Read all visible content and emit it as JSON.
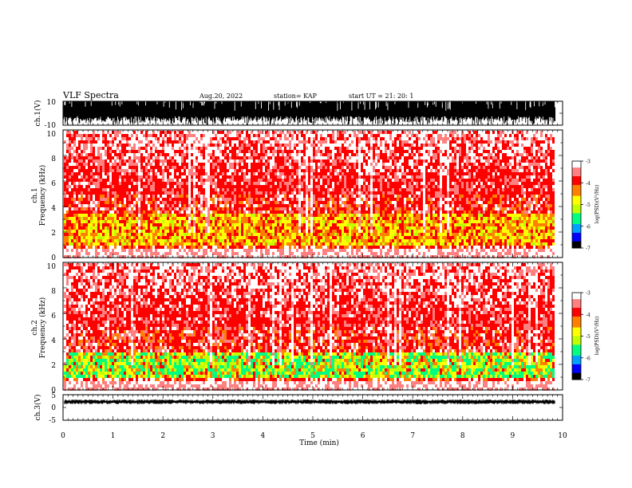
{
  "header": {
    "title": "VLF Spectra",
    "date": "Aug.20, 2022",
    "station": "station= KAP",
    "start_ut": "start  UT =   21: 20: 1"
  },
  "colors": {
    "axis": "#000000",
    "waveform": "#000000",
    "colormap": [
      "#000000",
      "#0000ff",
      "#00a0ff",
      "#00ff80",
      "#c0ff00",
      "#ffff00",
      "#ff8000",
      "#ff0000",
      "#ff8080",
      "#ffffff"
    ]
  },
  "chart_data": [
    {
      "type": "line",
      "panel": "ch1-waveform",
      "ylabel": "ch.1(V)",
      "ylim": [
        -10,
        10
      ],
      "ytick_labels": [
        "10",
        "-10"
      ],
      "xlim": [
        0,
        10
      ],
      "note_visual": "dense saturated waveform, amplitude mostly clipped at +-10 V"
    },
    {
      "type": "heatmap",
      "panel": "ch1-spectrogram",
      "ylabel": "ch.1\nFrequency (kHz)",
      "ylim": [
        0,
        10
      ],
      "ytick_labels": [
        "0",
        "2",
        "4",
        "6",
        "8",
        "10"
      ],
      "xlim": [
        0,
        10
      ],
      "data_x_max": 9.85,
      "colorbar": {
        "label": "log(PSD)(V²/Hz)",
        "range": [
          -7,
          -3
        ],
        "tick_labels": [
          "-3",
          "-4",
          "-5",
          "-6",
          "-7"
        ]
      },
      "dominant_band_khz": [
        0.8,
        3.5
      ]
    },
    {
      "type": "heatmap",
      "panel": "ch2-spectrogram",
      "ylabel": "ch.2\nFrequency (kHz)",
      "ylim": [
        0,
        10
      ],
      "ytick_labels": [
        "0",
        "2",
        "4",
        "6",
        "8",
        "10"
      ],
      "xlim": [
        0,
        10
      ],
      "data_x_max": 9.85,
      "colorbar": {
        "label": "log(PSD)(V²/Hz)",
        "range": [
          -7,
          -3
        ],
        "tick_labels": [
          "-3",
          "-4",
          "-5",
          "-6",
          "-7"
        ]
      },
      "dominant_band_khz": [
        0.8,
        3.0
      ]
    },
    {
      "type": "line",
      "panel": "ch3-waveform",
      "ylabel": "ch.3(V)",
      "ylim": [
        -5,
        5
      ],
      "ytick_labels": [
        "5",
        "0",
        "-5"
      ],
      "xlim": [
        0,
        10
      ],
      "xlabel": "Time (min)",
      "xtick_labels": [
        "0",
        "1",
        "2",
        "3",
        "4",
        "5",
        "6",
        "7",
        "8",
        "9",
        "10"
      ],
      "note_visual": "thin band around +2 V"
    }
  ]
}
